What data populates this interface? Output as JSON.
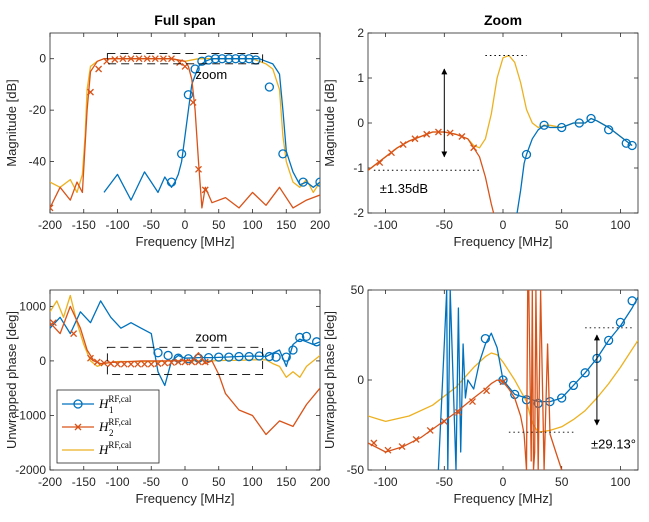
{
  "colors": {
    "h1": "#0072BD",
    "h2": "#D95319",
    "h": "#EDB120",
    "axis": "#262626",
    "annotation": "#000000"
  },
  "legend": {
    "items": [
      {
        "series": "h1",
        "base": "H",
        "sub": "1",
        "sup": "RF,cal",
        "marker": "circle"
      },
      {
        "series": "h2",
        "base": "H",
        "sub": "2",
        "sup": "RF,cal",
        "marker": "cross"
      },
      {
        "series": "h",
        "base": "H",
        "sub": "",
        "sup": "RF,cal",
        "marker": "none"
      }
    ]
  },
  "chart_data": [
    {
      "id": "mag-full",
      "type": "line",
      "title": "Full span",
      "xlabel": "Frequency [MHz]",
      "ylabel": "Magnitude [dB]",
      "xlim": [
        -200,
        200
      ],
      "ylim": [
        -60,
        10
      ],
      "xticks": [
        -200,
        -150,
        -100,
        -50,
        0,
        50,
        100,
        150,
        200
      ],
      "yticks": [
        -40,
        -20,
        0
      ],
      "series": [
        {
          "key": "h",
          "x": [
            -200,
            -185,
            -170,
            -160,
            -152,
            -148,
            -145,
            -140,
            -130,
            -120,
            -110,
            -100,
            -80,
            -60,
            -40,
            -20,
            0,
            20,
            40,
            60,
            80,
            100,
            110,
            120,
            130,
            140,
            145,
            150,
            155,
            160,
            170,
            180,
            190,
            200
          ],
          "y": [
            -48,
            -50,
            -47,
            -52,
            -45,
            -30,
            -12,
            -3,
            -1,
            0,
            0,
            0,
            0,
            0,
            0,
            0,
            -1,
            0,
            0,
            0,
            0,
            0,
            -1,
            -2,
            -4,
            -12,
            -30,
            -40,
            -44,
            -48,
            -50,
            -47,
            -52,
            -48
          ]
        },
        {
          "key": "h1",
          "x": [
            -120,
            -100,
            -80,
            -60,
            -50,
            -40,
            -30,
            -20,
            -15,
            -10,
            -5,
            0,
            5,
            10,
            20,
            30,
            40,
            60,
            80,
            100,
            110,
            120,
            130,
            140,
            145,
            150,
            155,
            160,
            170,
            180,
            190,
            200
          ],
          "y": [
            -52,
            -45,
            -55,
            -44,
            -48,
            -52,
            -46,
            -50,
            -48,
            -45,
            -40,
            -30,
            -20,
            -10,
            -3,
            -1,
            0,
            0,
            0,
            0,
            0,
            -1,
            -2,
            -6,
            -20,
            -36,
            -40,
            -44,
            -49,
            -48,
            -50,
            -48
          ],
          "marker_x": [
            -20,
            -5,
            5,
            15,
            25,
            35,
            45,
            55,
            65,
            75,
            85,
            95,
            105,
            125,
            145,
            175,
            200
          ],
          "marker_y": [
            -48,
            -37,
            -14,
            -4,
            -1,
            -0.5,
            0,
            0,
            0,
            0,
            0,
            0,
            -0.5,
            -11,
            -37,
            -48,
            -48
          ]
        },
        {
          "key": "h2",
          "x": [
            -200,
            -185,
            -170,
            -160,
            -152,
            -145,
            -140,
            -130,
            -120,
            -100,
            -80,
            -60,
            -40,
            -20,
            0,
            5,
            10,
            15,
            20,
            25,
            30,
            40,
            60,
            80,
            100,
            120,
            140,
            160,
            180,
            200
          ],
          "y": [
            -58,
            -50,
            -55,
            -48,
            -52,
            -20,
            -5,
            -1,
            0,
            0,
            0,
            0,
            0,
            0,
            -1,
            -3,
            -8,
            -20,
            -40,
            -58,
            -50,
            -56,
            -54,
            -58,
            -52,
            -57,
            -50,
            -58,
            -55,
            -53
          ],
          "marker_x": [
            -200,
            -140,
            -128,
            -116,
            -104,
            -92,
            -80,
            -68,
            -56,
            -44,
            -32,
            -20,
            -8,
            0,
            12,
            20,
            30
          ],
          "marker_y": [
            -58,
            -13,
            -4,
            -1,
            -0.3,
            0,
            0,
            0,
            0,
            0,
            0,
            0,
            -1.5,
            -3,
            -17,
            -43,
            -51
          ]
        }
      ]
    },
    {
      "id": "mag-zoom",
      "type": "line",
      "title": "Zoom",
      "xlabel": "Frequency [MHz]",
      "ylabel": "Magnitude [dB]",
      "xlim": [
        -115,
        115
      ],
      "ylim": [
        -2,
        2
      ],
      "xticks": [
        -100,
        -50,
        0,
        50,
        100
      ],
      "yticks": [
        -2,
        -1,
        0,
        1,
        2
      ],
      "series": [
        {
          "key": "h",
          "x": [
            -115,
            -110,
            -100,
            -90,
            -80,
            -70,
            -60,
            -50,
            -40,
            -30,
            -25,
            -20,
            -15,
            -10,
            -5,
            0,
            5,
            10,
            15,
            20,
            25,
            30,
            35,
            40,
            50,
            60,
            70,
            75,
            80,
            90,
            100,
            110
          ],
          "y": [
            -1.05,
            -0.95,
            -0.75,
            -0.55,
            -0.4,
            -0.3,
            -0.2,
            -0.2,
            -0.25,
            -0.35,
            -0.5,
            -0.55,
            -0.35,
            0.2,
            1.0,
            1.45,
            1.5,
            1.35,
            0.9,
            0.3,
            0.0,
            -0.1,
            -0.05,
            -0.05,
            -0.1,
            0.0,
            0.0,
            0.1,
            0.05,
            -0.1,
            -0.3,
            -0.5
          ]
        },
        {
          "key": "h1",
          "x": [
            12,
            15,
            18,
            20,
            25,
            30,
            35,
            40,
            50,
            60,
            70,
            75,
            80,
            90,
            100,
            110
          ],
          "y": [
            -2.0,
            -1.5,
            -0.9,
            -0.7,
            -0.35,
            -0.15,
            -0.05,
            -0.1,
            -0.1,
            0.0,
            0.0,
            0.1,
            0.05,
            -0.1,
            -0.3,
            -0.5
          ],
          "marker_x": [
            20,
            35,
            50,
            65,
            75,
            90,
            105,
            110
          ],
          "marker_y": [
            -0.7,
            -0.05,
            -0.1,
            0.0,
            0.1,
            -0.15,
            -0.45,
            -0.5
          ]
        },
        {
          "key": "h2",
          "x": [
            -115,
            -110,
            -100,
            -90,
            -80,
            -70,
            -60,
            -50,
            -40,
            -30,
            -25,
            -20,
            -15,
            -10,
            -8
          ],
          "y": [
            -1.05,
            -0.95,
            -0.75,
            -0.55,
            -0.4,
            -0.3,
            -0.2,
            -0.2,
            -0.25,
            -0.35,
            -0.55,
            -0.75,
            -1.2,
            -1.8,
            -2.0
          ],
          "marker_x": [
            -105,
            -95,
            -85,
            -75,
            -65,
            -55,
            -45,
            -35,
            -25
          ],
          "marker_y": [
            -0.88,
            -0.66,
            -0.48,
            -0.35,
            -0.25,
            -0.2,
            -0.22,
            -0.3,
            -0.55
          ]
        }
      ]
    },
    {
      "id": "phase-full",
      "type": "line",
      "xlabel": "Frequency [MHz]",
      "ylabel": "Unwrapped phase [deg]",
      "xlim": [
        -200,
        200
      ],
      "ylim": [
        -2000,
        1300
      ],
      "xticks": [
        -200,
        -150,
        -100,
        -50,
        0,
        50,
        100,
        150,
        200
      ],
      "yticks": [
        -2000,
        -1000,
        0,
        1000
      ],
      "series": [
        {
          "key": "h",
          "x": [
            -200,
            -190,
            -180,
            -170,
            -160,
            -150,
            -140,
            -130,
            -120,
            -100,
            -80,
            -60,
            -40,
            -20,
            0,
            20,
            40,
            60,
            80,
            100,
            120,
            130,
            140,
            150,
            160,
            170,
            180,
            190,
            200
          ],
          "y": [
            900,
            1100,
            800,
            1200,
            700,
            300,
            0,
            -100,
            -50,
            -10,
            -10,
            -10,
            -10,
            0,
            0,
            0,
            0,
            10,
            10,
            20,
            20,
            -50,
            -100,
            -300,
            -200,
            -300,
            -100,
            0,
            100
          ]
        },
        {
          "key": "h1",
          "x": [
            -200,
            -185,
            -170,
            -155,
            -140,
            -125,
            -110,
            -95,
            -80,
            -65,
            -50,
            -40,
            -30,
            -20,
            -10,
            0,
            20,
            40,
            60,
            80,
            100,
            120,
            140,
            150,
            160,
            170,
            180,
            190,
            200
          ],
          "y": [
            600,
            800,
            500,
            900,
            700,
            1100,
            800,
            600,
            700,
            600,
            500,
            -200,
            -450,
            0,
            100,
            50,
            60,
            60,
            70,
            80,
            90,
            80,
            200,
            -100,
            300,
            400,
            350,
            300,
            350
          ],
          "marker_x": [
            -40,
            -25,
            -10,
            5,
            20,
            35,
            50,
            65,
            80,
            95,
            110,
            125,
            135,
            150,
            160,
            170,
            180,
            195
          ],
          "marker_y": [
            150,
            100,
            50,
            40,
            50,
            60,
            70,
            70,
            80,
            80,
            90,
            80,
            70,
            70,
            200,
            430,
            450,
            350
          ]
        },
        {
          "key": "h2",
          "x": [
            -200,
            -185,
            -170,
            -155,
            -145,
            -135,
            -125,
            -110,
            -95,
            -80,
            -65,
            -50,
            -35,
            -20,
            -10,
            0,
            10,
            20,
            30,
            40,
            50,
            60,
            80,
            100,
            120,
            140,
            160,
            180,
            200
          ],
          "y": [
            700,
            500,
            1000,
            600,
            200,
            0,
            -50,
            -30,
            -20,
            -10,
            0,
            0,
            0,
            0,
            0,
            10,
            0,
            150,
            -50,
            0,
            -250,
            -600,
            -900,
            -1000,
            -1350,
            -1100,
            -1200,
            -800,
            -500
          ],
          "marker_x": [
            -195,
            -165,
            -140,
            -130,
            -120,
            -110,
            -100,
            -90,
            -80,
            -70,
            -60,
            -50,
            -40,
            -30,
            -20,
            -10,
            0,
            10,
            20,
            30
          ],
          "marker_y": [
            700,
            500,
            50,
            -20,
            -40,
            -50,
            -60,
            -60,
            -60,
            -60,
            -60,
            -60,
            -50,
            -40,
            -30,
            -20,
            -20,
            -20,
            -20,
            -20
          ]
        }
      ]
    },
    {
      "id": "phase-zoom",
      "type": "line",
      "xlabel": "Frequency [MHz]",
      "ylabel": "Unwrapped phase [deg]",
      "xlim": [
        -115,
        115
      ],
      "ylim": [
        -50,
        50
      ],
      "xticks": [
        -100,
        -50,
        0,
        50,
        100
      ],
      "yticks": [
        -50,
        0,
        50
      ],
      "series": [
        {
          "key": "h",
          "x": [
            -115,
            -100,
            -80,
            -60,
            -40,
            -25,
            -15,
            -10,
            -5,
            0,
            10,
            20,
            25,
            30,
            40,
            50,
            60,
            70,
            80,
            90,
            100,
            110,
            115
          ],
          "y": [
            -20,
            -23,
            -20,
            -14,
            -4,
            7,
            13,
            15,
            14,
            10,
            0,
            -12,
            -24,
            -29,
            -28,
            -26,
            -22,
            -17,
            -10,
            -2,
            7,
            17,
            22
          ]
        },
        {
          "key": "h1",
          "x": [
            -55,
            -50,
            -48,
            -47,
            -45,
            -40,
            -38,
            -36,
            -34,
            -32,
            -30,
            -25,
            -20,
            -15,
            -10,
            -5,
            0,
            10,
            20,
            30,
            40,
            50,
            60,
            70,
            80,
            90,
            100,
            110,
            115
          ],
          "y": [
            -50,
            20,
            50,
            -50,
            50,
            -50,
            40,
            -40,
            20,
            -10,
            0,
            -5,
            10,
            20,
            26,
            18,
            0,
            -8,
            -10,
            -12,
            -12,
            -10,
            -3,
            4,
            12,
            22,
            30,
            40,
            46
          ],
          "marker_x": [
            -15,
            0,
            10,
            20,
            30,
            40,
            50,
            60,
            70,
            80,
            90,
            100,
            110
          ],
          "marker_y": [
            23,
            0,
            -8,
            -11,
            -13,
            -12,
            -10,
            -3,
            4,
            12,
            22,
            32,
            44
          ]
        },
        {
          "key": "h2",
          "x": [
            -115,
            -100,
            -85,
            -70,
            -55,
            -40,
            -25,
            -15,
            -10,
            -5,
            0,
            5,
            10,
            15,
            18,
            20,
            21,
            22,
            24,
            25,
            26,
            27,
            28,
            30,
            32,
            35,
            38,
            40,
            45,
            50
          ],
          "y": [
            -35,
            -40,
            -37,
            -32,
            -25,
            -18,
            -10,
            -5,
            -2,
            0,
            -1,
            -5,
            -10,
            -20,
            -30,
            -50,
            50,
            50,
            -45,
            50,
            -50,
            -40,
            50,
            -50,
            50,
            -50,
            20,
            -30,
            -40,
            -50
          ],
          "marker_x": [
            -110,
            -98,
            -86,
            -74,
            -62,
            -50,
            -38,
            -26,
            -14,
            0
          ],
          "marker_y": [
            -35,
            -39,
            -37,
            -33,
            -28,
            -23,
            -18,
            -12,
            -6,
            -1
          ]
        }
      ]
    }
  ],
  "annotations": {
    "zoom_label_top": "zoom",
    "zoom_label_bottom": "zoom",
    "mag_delta": "±1.35dB",
    "phase_delta": "±29.13°"
  }
}
